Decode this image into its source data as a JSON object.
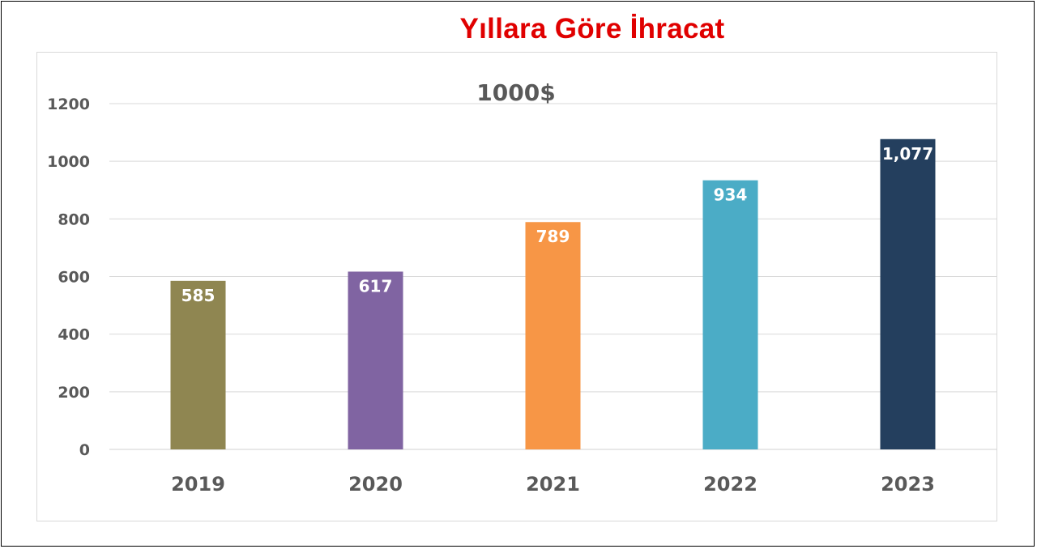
{
  "chart_data": {
    "type": "bar",
    "title": "Yıllara Göre İhracat",
    "subtitle": "1000$",
    "categories": [
      "2019",
      "2020",
      "2021",
      "2022",
      "2023"
    ],
    "values": [
      585,
      617,
      789,
      934,
      1077
    ],
    "data_labels": [
      "585",
      "617",
      "789",
      "934",
      "1,077"
    ],
    "bar_colors": [
      "#8f8651",
      "#8064a2",
      "#f79646",
      "#4bacc6",
      "#243f5e"
    ],
    "ylim": [
      0,
      1200
    ],
    "yticks": [
      "0",
      "200",
      "400",
      "600",
      "800",
      "1000",
      "1200"
    ],
    "grid": true,
    "legend": "none"
  }
}
